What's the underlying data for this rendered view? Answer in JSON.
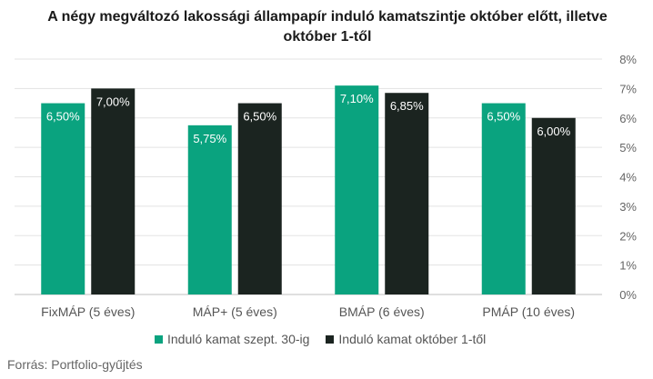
{
  "chart_data": {
    "type": "bar",
    "title": "A négy megváltozó lakossági állampapír induló kamatszintje október előtt, illetve október 1-től",
    "categories": [
      "FixMÁP (5 éves)",
      "MÁP+ (5 éves)",
      "BMÁP (6 éves)",
      "PMÁP (10 éves)"
    ],
    "series": [
      {
        "name": "Induló kamat szept. 30-ig",
        "values": [
          6.5,
          5.75,
          7.1,
          6.5
        ],
        "labels": [
          "6,50%",
          "5,75%",
          "7,10%",
          "6,50%"
        ],
        "color": "#0aa37f"
      },
      {
        "name": "Induló kamat október 1-től",
        "values": [
          7.0,
          6.5,
          6.85,
          6.0
        ],
        "labels": [
          "7,00%",
          "6,50%",
          "6,85%",
          "6,00%"
        ],
        "color": "#1b2420"
      }
    ],
    "ylim": [
      0,
      8
    ],
    "yticks": [
      "0%",
      "1%",
      "2%",
      "3%",
      "4%",
      "5%",
      "6%",
      "7%",
      "8%"
    ],
    "y_axis_side": "right",
    "grid": true,
    "legend_position": "bottom",
    "xlabel": "",
    "ylabel": ""
  },
  "source": "Forrás: Portfolio-gyűjtés"
}
